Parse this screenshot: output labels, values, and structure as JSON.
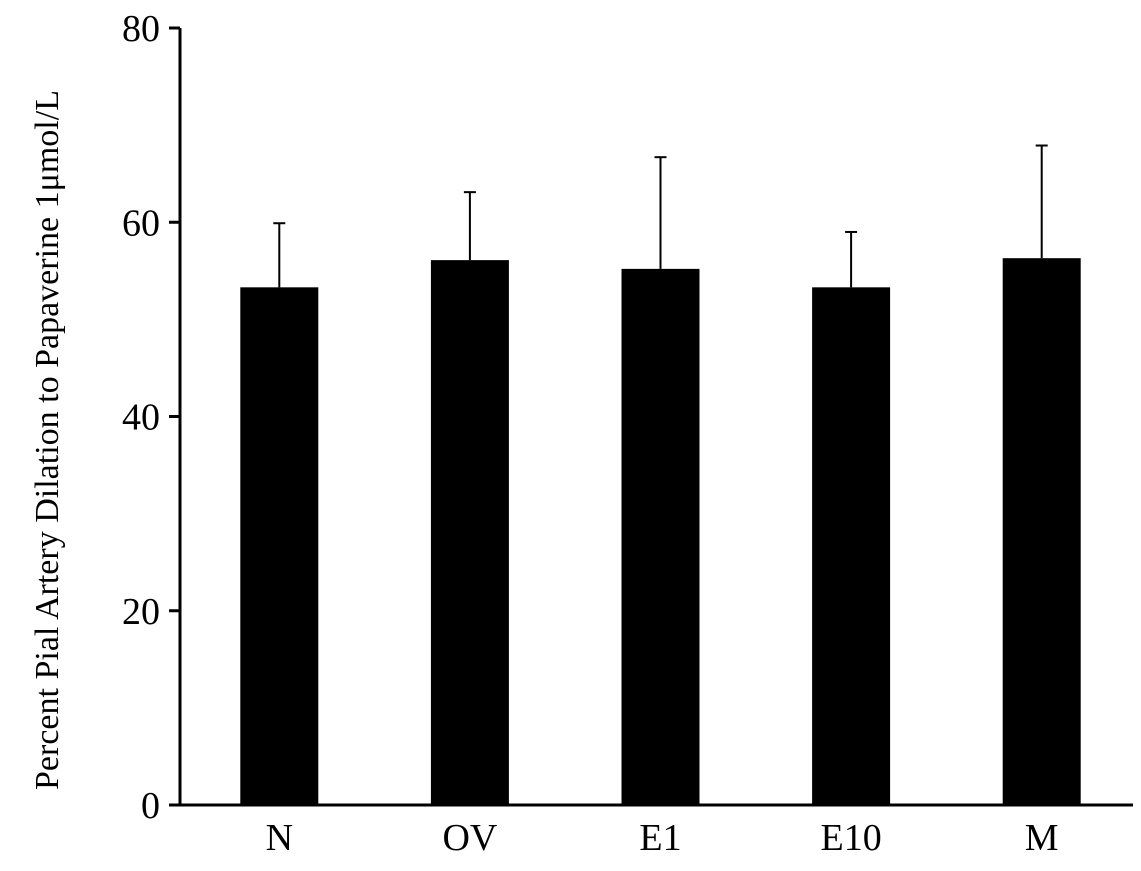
{
  "chart_data": {
    "type": "bar",
    "title": "",
    "xlabel": "",
    "ylabel": "Percent Pial Artery Dilation to Papaverine 1μmol/L",
    "categories": [
      "N",
      "OV",
      "E1",
      "E10",
      "M"
    ],
    "values": [
      53.3,
      56.1,
      55.2,
      53.3,
      56.3
    ],
    "errors": [
      6.6,
      7.0,
      11.5,
      5.7,
      11.6
    ],
    "ylim": [
      0,
      80
    ],
    "yticks": [
      0,
      20,
      40,
      60,
      80
    ],
    "ytick_labels": [
      "0",
      "20",
      "40",
      "60",
      "80"
    ],
    "grid": false,
    "legend": "none",
    "bar_color": "#000000"
  }
}
